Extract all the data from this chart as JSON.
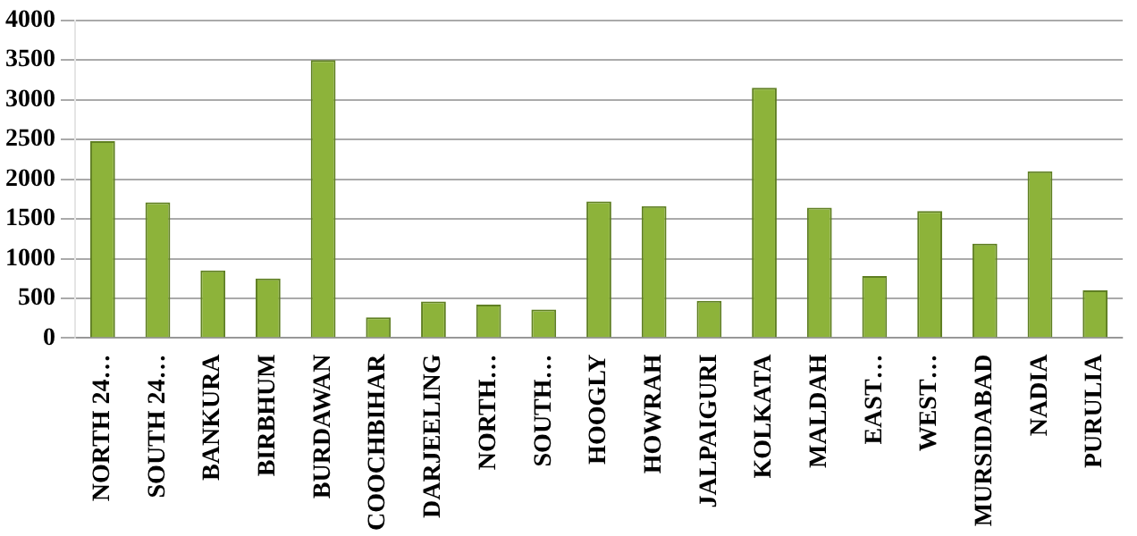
{
  "chart_data": {
    "type": "bar",
    "categories": [
      "NORTH 24…",
      "SOUTH 24…",
      "BANKURA",
      "BIRBHUM",
      "BURDAWAN",
      "COOCHBIHAR",
      "DARJEELING",
      "NORTH…",
      "SOUTH…",
      "HOOGLY",
      "HOWRAH",
      "JALPAIGURI",
      "KOLKATA",
      "MALDAH",
      "EAST…",
      "WEST…",
      "MURSIDABAD",
      "NADIA",
      "PURULIA"
    ],
    "values": [
      2480,
      1710,
      850,
      750,
      3500,
      260,
      460,
      420,
      360,
      1720,
      1660,
      470,
      3150,
      1640,
      780,
      1600,
      1190,
      2100,
      600
    ],
    "color": "#8db33a",
    "ylim": [
      0,
      4000
    ],
    "yticks": [
      0,
      500,
      1000,
      1500,
      2000,
      2500,
      3000,
      3500,
      4000
    ],
    "grid": "y"
  }
}
